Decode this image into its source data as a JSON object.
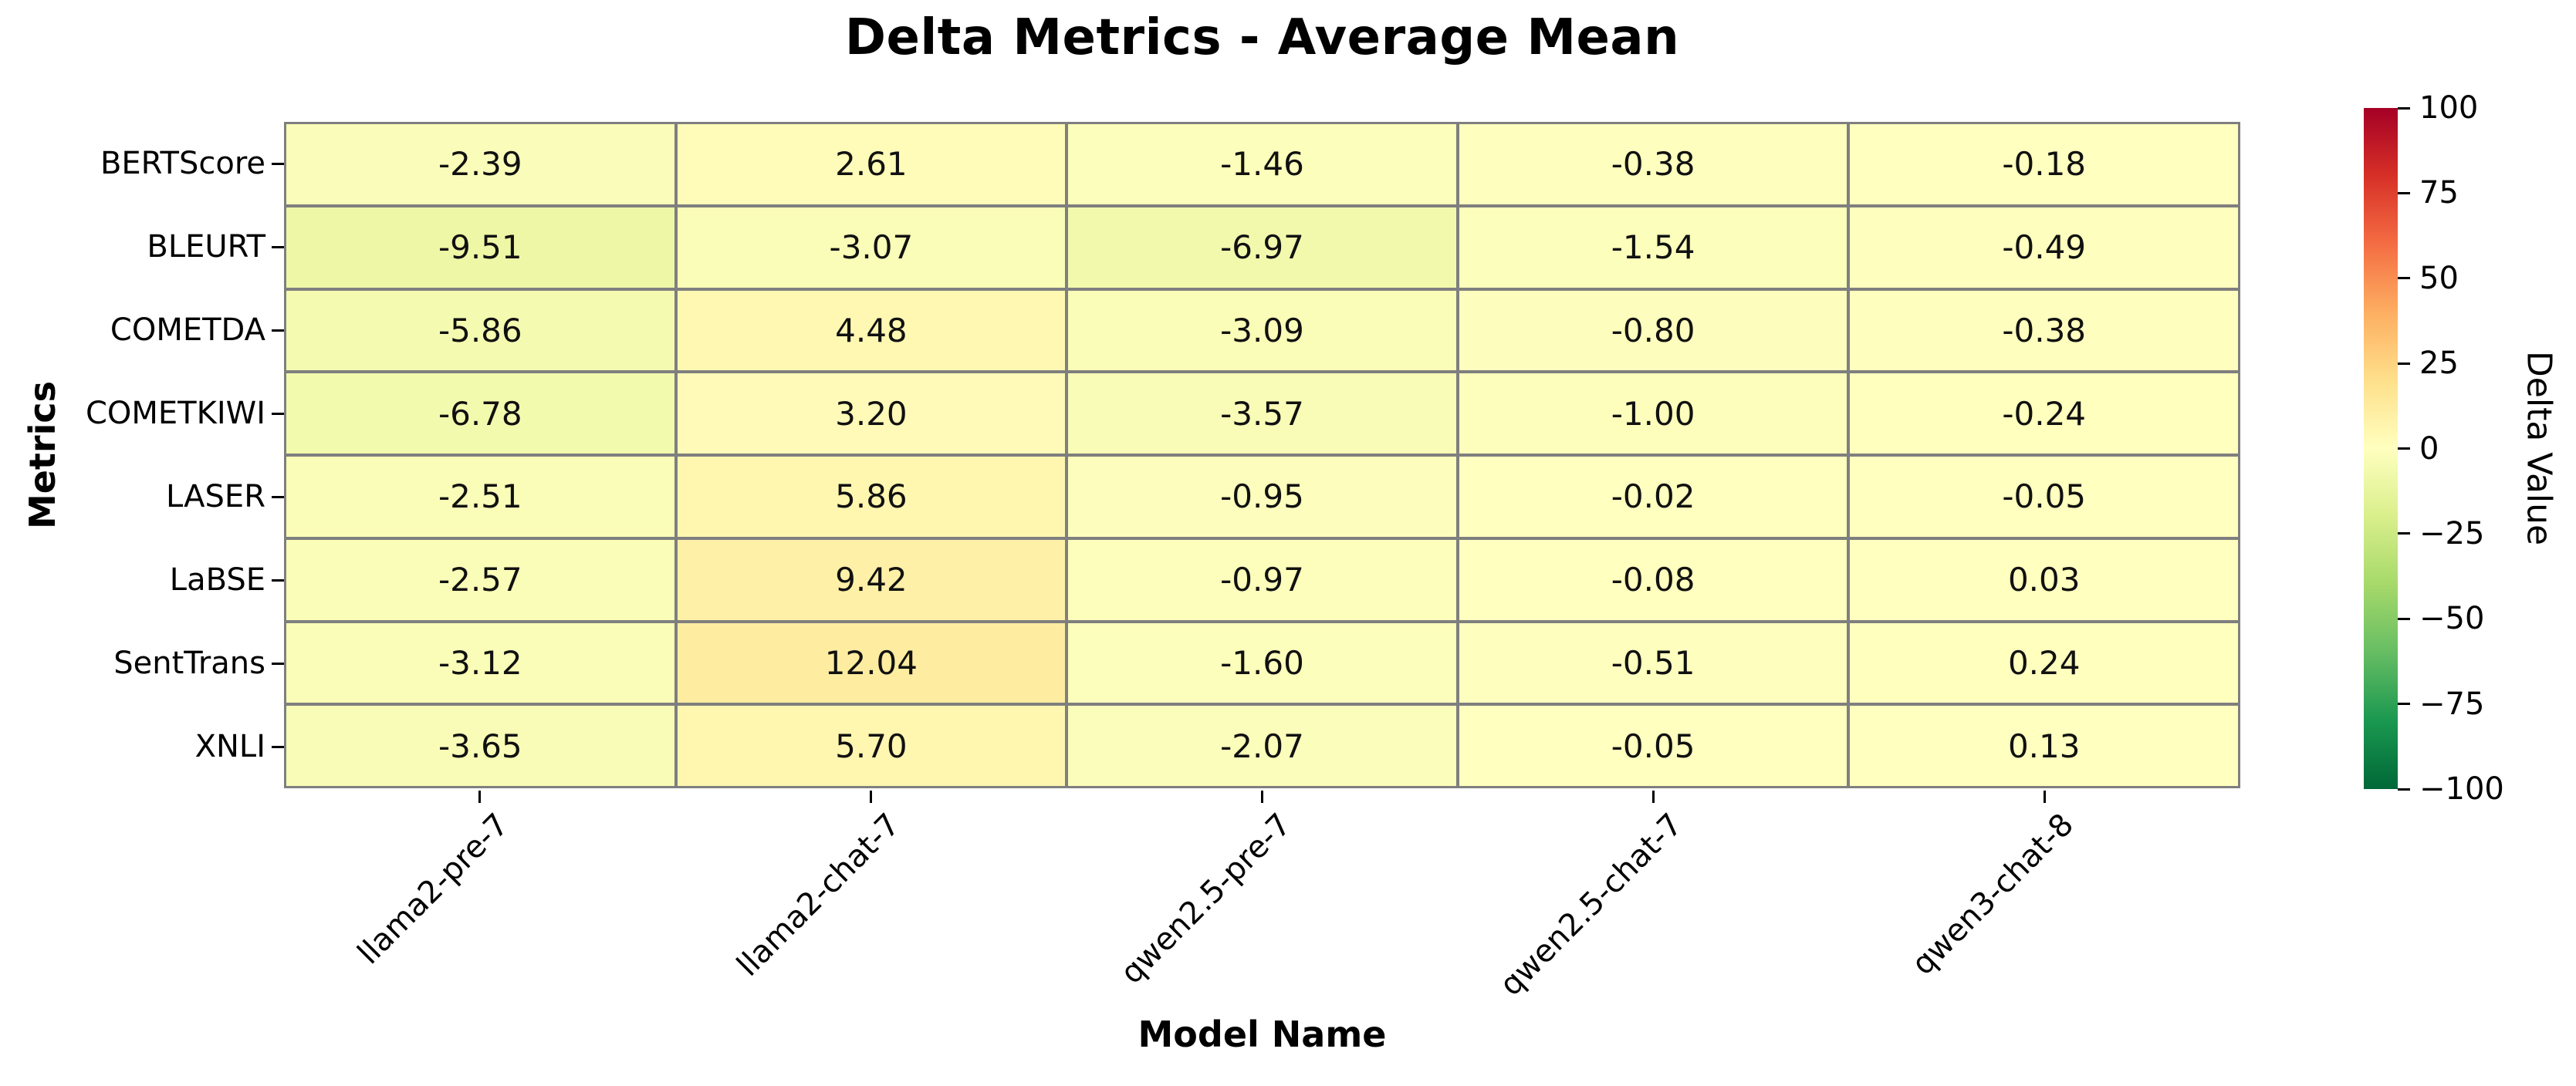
{
  "chart_data": {
    "type": "heatmap",
    "title": "Delta Metrics - Average Mean",
    "xlabel": "Model Name",
    "ylabel": "Metrics",
    "x_categories": [
      "llama2-pre-7",
      "llama2-chat-7",
      "qwen2.5-pre-7",
      "qwen2.5-chat-7",
      "qwen3-chat-8"
    ],
    "y_categories": [
      "BERTScore",
      "BLEURT",
      "COMETDA",
      "COMETKIWI",
      "LASER",
      "LaBSE",
      "SentTrans",
      "XNLI"
    ],
    "values": [
      [
        -2.39,
        2.61,
        -1.46,
        -0.38,
        -0.18
      ],
      [
        -9.51,
        -3.07,
        -6.97,
        -1.54,
        -0.49
      ],
      [
        -5.86,
        4.48,
        -3.09,
        -0.8,
        -0.38
      ],
      [
        -6.78,
        3.2,
        -3.57,
        -1.0,
        -0.24
      ],
      [
        -2.51,
        5.86,
        -0.95,
        -0.02,
        -0.05
      ],
      [
        -2.57,
        9.42,
        -0.97,
        -0.08,
        0.03
      ],
      [
        -3.12,
        12.04,
        -1.6,
        -0.51,
        0.24
      ],
      [
        -3.65,
        5.7,
        -2.07,
        -0.05,
        0.13
      ]
    ],
    "value_decimals": 2,
    "vmin": -100,
    "vmax": 100,
    "colormap": "RdYlGn_r",
    "colormap_anchors_red_to_green": [
      "#a50026",
      "#d73027",
      "#f46d43",
      "#fdae61",
      "#fee08b",
      "#ffffbf",
      "#d9ef8b",
      "#a6d96a",
      "#66bd63",
      "#1a9850",
      "#006837"
    ],
    "grid_line_color": "#7f7f7f",
    "cell_text_color": "#111111",
    "grid_on": true,
    "legend_position": "none",
    "colorbar": {
      "label": "Delta Value",
      "tick_values": [
        100,
        75,
        50,
        25,
        0,
        -25,
        -50,
        -75,
        -100
      ],
      "tick_labels": [
        "100",
        "75",
        "50",
        "25",
        "0",
        "−25",
        "−50",
        "−75",
        "−100"
      ]
    }
  }
}
